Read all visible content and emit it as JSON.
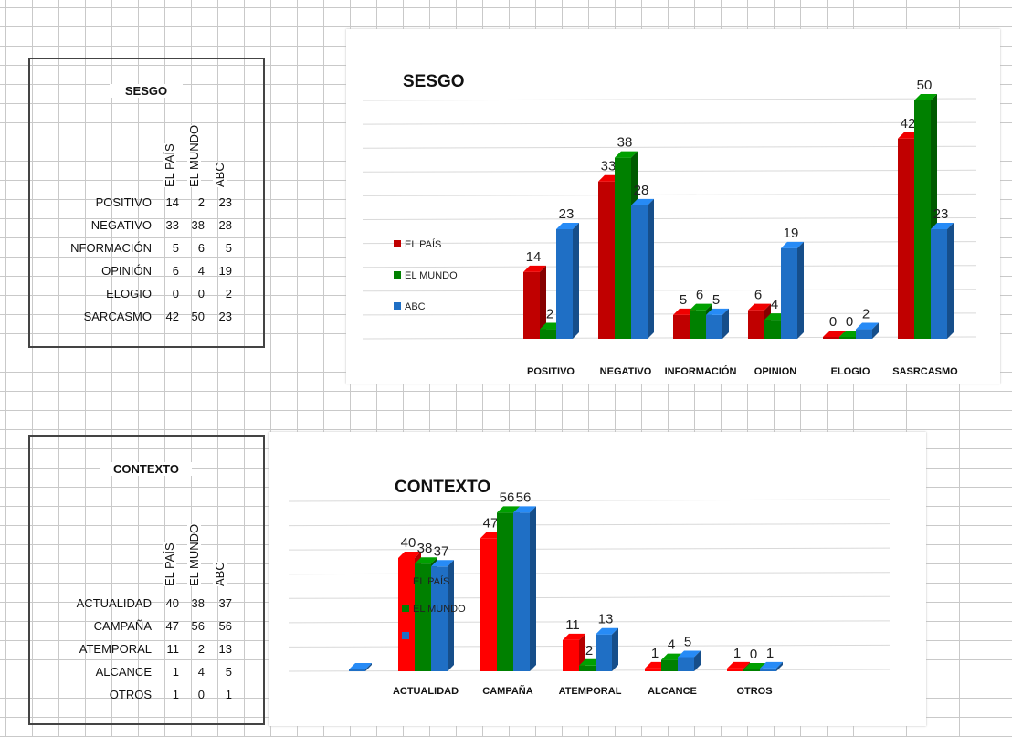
{
  "sesgo_table": {
    "title": "SESGO",
    "columns": [
      "EL PAÍS",
      "EL MUNDO",
      "ABC"
    ],
    "rows": [
      {
        "label": "POSITIVO",
        "values": [
          "14",
          "2",
          "23"
        ]
      },
      {
        "label": "NEGATIVO",
        "values": [
          "33",
          "38",
          "28"
        ]
      },
      {
        "label": "NFORMACIÓN",
        "values": [
          "5",
          "6",
          "5"
        ]
      },
      {
        "label": "OPINIÓN",
        "values": [
          "6",
          "4",
          "19"
        ]
      },
      {
        "label": "ELOGIO",
        "values": [
          "0",
          "0",
          "2"
        ]
      },
      {
        "label": "SARCASMO",
        "values": [
          "42",
          "50",
          "23"
        ]
      }
    ]
  },
  "contexto_table": {
    "title": "CONTEXTO",
    "columns": [
      "EL PAÍS",
      "EL MUNDO",
      "ABC"
    ],
    "rows": [
      {
        "label": "ACTUALIDAD",
        "values": [
          "40",
          "38",
          "37"
        ]
      },
      {
        "label": "CAMPAÑA",
        "values": [
          "47",
          "56",
          "56"
        ]
      },
      {
        "label": "ATEMPORAL",
        "values": [
          "11",
          "2",
          "13"
        ]
      },
      {
        "label": "ALCANCE",
        "values": [
          "1",
          "4",
          "5"
        ]
      },
      {
        "label": "OTROS",
        "values": [
          "1",
          "0",
          "1"
        ]
      }
    ]
  },
  "colors": {
    "el_pais": "#c00000",
    "el_pais_bright": "#ff0000",
    "el_mundo": "#008000",
    "abc": "#1f6fc5",
    "gridline": "#d9d9d9"
  },
  "chart_data": [
    {
      "type": "bar",
      "title": "SESGO",
      "categories": [
        "POSITIVO",
        "NEGATIVO",
        "INFORMACIÓN",
        "OPINION",
        "ELOGIO",
        "SASRCASMO"
      ],
      "series": [
        {
          "name": "EL PAÍS",
          "values": [
            14,
            33,
            5,
            6,
            0,
            42
          ]
        },
        {
          "name": "EL MUNDO",
          "values": [
            2,
            38,
            6,
            4,
            0,
            50
          ]
        },
        {
          "name": "ABC",
          "values": [
            23,
            28,
            5,
            19,
            2,
            23
          ]
        }
      ],
      "ylim": [
        0,
        50
      ],
      "grid": true,
      "legend": "left"
    },
    {
      "type": "bar",
      "title": "CONTEXTO",
      "categories": [
        "",
        "ACTUALIDAD",
        "CAMPAÑA",
        "ATEMPORAL",
        "ALCANCE",
        "OTROS"
      ],
      "series": [
        {
          "name": "EL PAÍS",
          "values": [
            null,
            40,
            47,
            11,
            1,
            1
          ]
        },
        {
          "name": "EL MUNDO",
          "values": [
            null,
            38,
            56,
            2,
            4,
            0
          ]
        },
        {
          "name": "",
          "values": [
            0,
            37,
            56,
            13,
            5,
            1
          ]
        }
      ],
      "ylim": [
        0,
        60
      ],
      "grid": true,
      "legend": "left"
    }
  ]
}
